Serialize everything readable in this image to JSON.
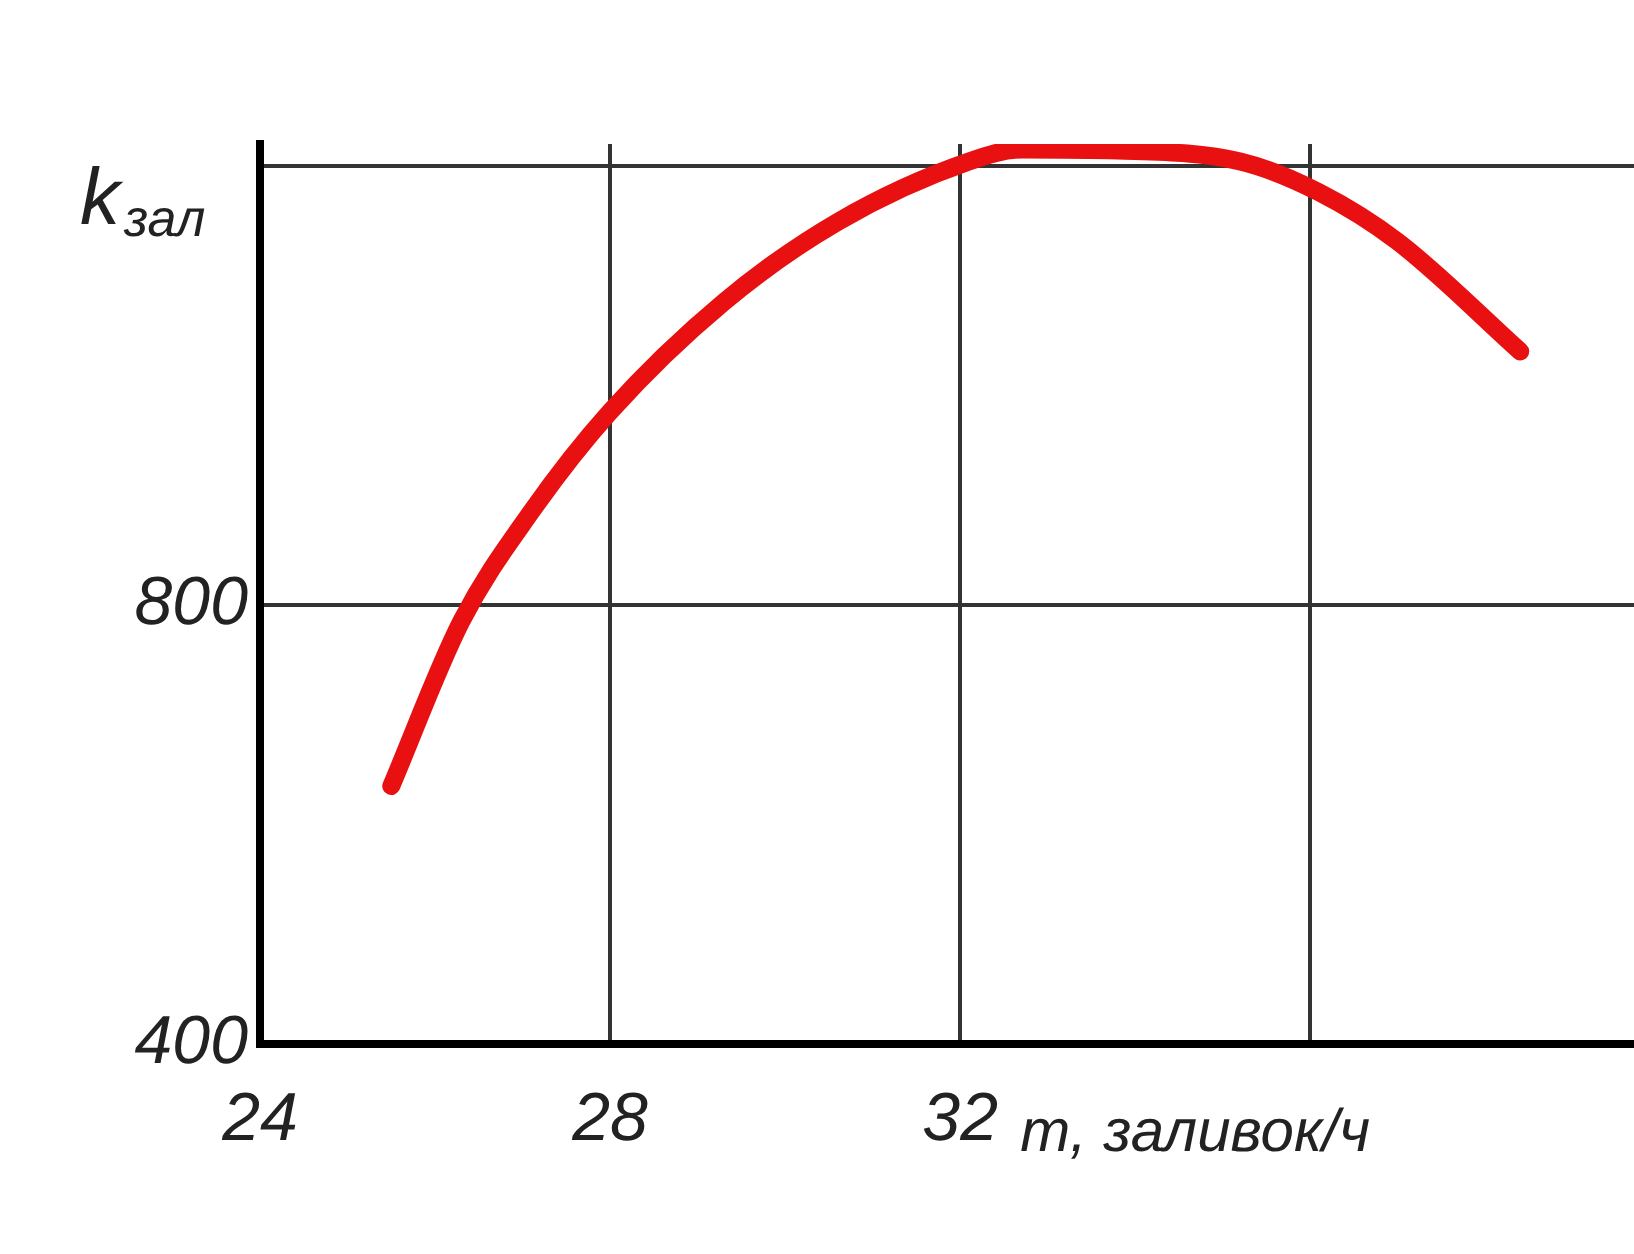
{
  "chart_data": {
    "type": "line",
    "xlabel": "m, заливок/ч",
    "ylabel": "k$_{зал}$",
    "xlim": [
      24,
      39.7
    ],
    "xticks": [
      24,
      28,
      32,
      {
        "value": 36,
        "label": null
      }
    ],
    "ylim": [
      400,
      1220
    ],
    "yticks": [
      400,
      800,
      {
        "value": 1200,
        "label": null
      }
    ],
    "grid": true,
    "marker": "none",
    "line_style": "solid",
    "series": [
      {
        "color": "#e81010",
        "x": [
          25.5,
          26.3,
          27.1,
          28,
          29.3,
          30.6,
          32.1,
          32.7,
          33.8,
          35.2,
          36.1,
          37,
          38.4
        ],
        "values": [
          635,
          785,
          885,
          976,
          1076,
          1149,
          1204,
          1215,
          1214,
          1204,
          1176,
          1131,
          1031
        ]
      }
    ]
  }
}
